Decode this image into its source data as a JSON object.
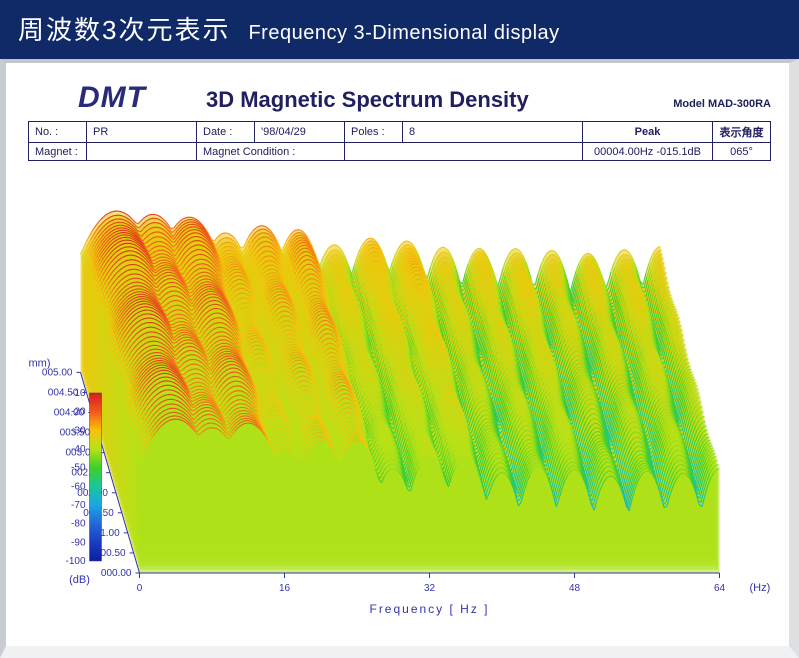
{
  "header": {
    "jp": "周波数3次元表示",
    "en": "Frequency 3-Dimensional display",
    "bg": "#0f2a66"
  },
  "brand": "DMT",
  "chart_title": "3D Magnetic Spectrum Density",
  "model": "Model MAD-300RA",
  "info": {
    "no_label": "No. :",
    "no_value": "PR",
    "date_label": "Date :",
    "date_value": "'98/04/29",
    "poles_label": "Poles :",
    "poles_value": "8",
    "peak_header": "Peak",
    "angle_header": "表示角度",
    "magnet_label": "Magnet :",
    "magnet_value": "",
    "cond_label": "Magnet Condition :",
    "cond_value": "",
    "peak_value": "00004.00Hz  -015.1dB",
    "angle_value": "065°"
  },
  "chart": {
    "type": "3d-waterfall-spectrum",
    "x_axis": {
      "label": "Frequency [ Hz ]",
      "unit": "(Hz)",
      "min": 0,
      "max": 64,
      "ticks": [
        0,
        16,
        32,
        48,
        64
      ]
    },
    "z_axis": {
      "label": "(mm)",
      "min": 0,
      "max": 5,
      "ticks": [
        "000.00",
        "000.50",
        "001.00",
        "001.50",
        "002.00",
        "002.50",
        "003.00",
        "003.50",
        "004.00",
        "004.50",
        "005.00"
      ]
    },
    "y_colorbar": {
      "label": "(dB)",
      "min": -100,
      "max": -10,
      "ticks": [
        -10,
        -20,
        -30,
        -40,
        -50,
        -60,
        -70,
        -80,
        -90,
        -100
      ],
      "stops": [
        {
          "v": -10,
          "c": "#d81e1e"
        },
        {
          "v": -20,
          "c": "#f2581a"
        },
        {
          "v": -30,
          "c": "#f9c20a"
        },
        {
          "v": -40,
          "c": "#b6e218"
        },
        {
          "v": -50,
          "c": "#3fcf2a"
        },
        {
          "v": -60,
          "c": "#18c79a"
        },
        {
          "v": -70,
          "c": "#1aa6e2"
        },
        {
          "v": -80,
          "c": "#2268d8"
        },
        {
          "v": -90,
          "c": "#1a3cc2"
        },
        {
          "v": -100,
          "c": "#0c1fa0"
        }
      ]
    },
    "slices": 60,
    "peaks": [
      {
        "hz": 4,
        "db": -15,
        "width": 3.5
      },
      {
        "hz": 8,
        "db": -22,
        "width": 3.0
      },
      {
        "hz": 12,
        "db": -20,
        "width": 3.0
      },
      {
        "hz": 16,
        "db": -32,
        "width": 2.5
      },
      {
        "hz": 20,
        "db": -30,
        "width": 2.5
      },
      {
        "hz": 24,
        "db": -28,
        "width": 2.2
      },
      {
        "hz": 28,
        "db": -42,
        "width": 2.0
      },
      {
        "hz": 32,
        "db": -38,
        "width": 2.0
      },
      {
        "hz": 36,
        "db": -36,
        "width": 2.0
      },
      {
        "hz": 40,
        "db": -45,
        "width": 1.8
      },
      {
        "hz": 44,
        "db": -44,
        "width": 1.8
      },
      {
        "hz": 48,
        "db": -42,
        "width": 1.8
      },
      {
        "hz": 52,
        "db": -48,
        "width": 1.8
      },
      {
        "hz": 56,
        "db": -46,
        "width": 1.8
      },
      {
        "hz": 60,
        "db": -44,
        "width": 1.8
      },
      {
        "hz": 64,
        "db": -45,
        "width": 1.8
      }
    ],
    "baseline_db": -75,
    "noise_db": 8,
    "colors": {
      "axis": "#3333aa",
      "bg": "#ffffff"
    }
  }
}
